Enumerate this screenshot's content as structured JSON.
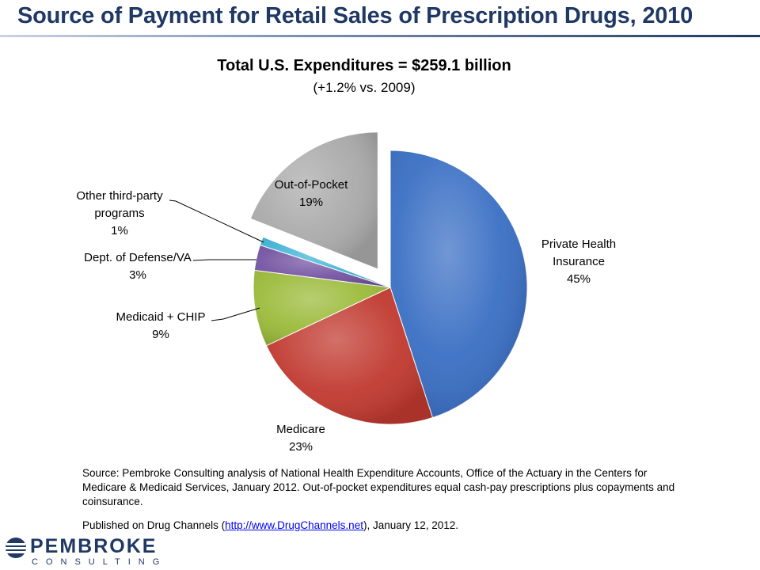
{
  "page": {
    "title": "Source of Payment for Retail Sales of Prescription Drugs, 2010"
  },
  "chart_data": {
    "type": "pie",
    "title": "Total U.S. Expenditures = $259.1 billion",
    "subtitle": "(+1.2% vs. 2009)",
    "unit": "%",
    "exploded": "Out-of-Pocket",
    "slices": [
      {
        "label_lines": [
          "Private Health",
          "Insurance"
        ],
        "value": 45,
        "value_label": "45%",
        "color": "#3a6fc4"
      },
      {
        "label_lines": [
          "Medicare"
        ],
        "value": 23,
        "value_label": "23%",
        "color": "#c0392f"
      },
      {
        "label_lines": [
          "Medicaid + CHIP"
        ],
        "value": 9,
        "value_label": "9%",
        "color": "#9bbb3a"
      },
      {
        "label_lines": [
          "Dept. of Defense/VA"
        ],
        "value": 3,
        "value_label": "3%",
        "color": "#7453a2"
      },
      {
        "label_lines": [
          "Other third-party",
          "programs"
        ],
        "value": 1,
        "value_label": "1%",
        "color": "#3fb3d6"
      },
      {
        "label_lines": [
          "Out-of-Pocket"
        ],
        "value": 19,
        "value_label": "19%",
        "color": "#aaaaaa"
      }
    ]
  },
  "footer": {
    "source": "Source: Pembroke  Consulting analysis of National Health Expenditure Accounts, Office of the Actuary in the Centers for Medicare & Medicaid Services, January 2012. Out-of-pocket  expenditures equal cash-pay prescriptions plus copayments and coinsurance.",
    "published_prefix": "Published on Drug Channels (",
    "published_link": "http://www.DrugChannels.net",
    "published_suffix": "),  January 12, 2012."
  },
  "logo": {
    "name": "PEMBROKE",
    "sub": "CONSULTING"
  }
}
